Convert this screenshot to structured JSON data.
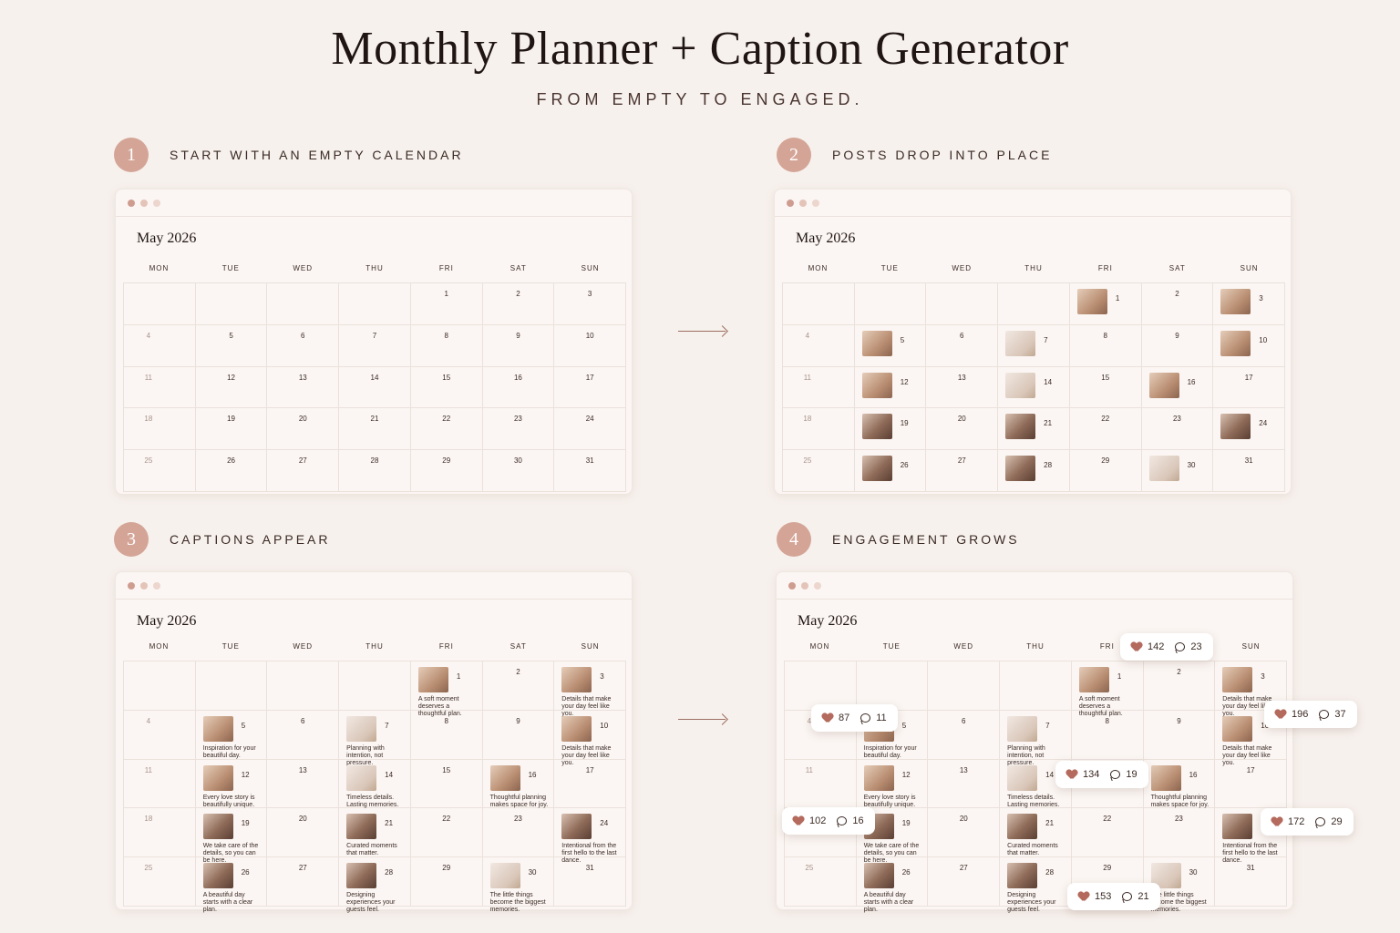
{
  "header": {
    "title": "Monthly Planner + Caption Generator",
    "subtitle": "FROM EMPTY TO ENGAGED."
  },
  "steps": [
    {
      "num": "1",
      "label": "START WITH AN EMPTY CALENDAR"
    },
    {
      "num": "2",
      "label": "POSTS DROP INTO PLACE"
    },
    {
      "num": "3",
      "label": "CAPTIONS APPEAR"
    },
    {
      "num": "4",
      "label": "ENGAGEMENT GROWS"
    }
  ],
  "calendar": {
    "month": "May 2026",
    "days_of_week": [
      "MON",
      "TUE",
      "WED",
      "THU",
      "FRI",
      "SAT",
      "SUN"
    ],
    "weeks": [
      [
        "",
        "",
        "",
        "",
        "1",
        "2",
        "3"
      ],
      [
        "4",
        "5",
        "6",
        "7",
        "8",
        "9",
        "10"
      ],
      [
        "11",
        "12",
        "13",
        "14",
        "15",
        "16",
        "17"
      ],
      [
        "18",
        "19",
        "20",
        "21",
        "22",
        "23",
        "24"
      ],
      [
        "25",
        "26",
        "27",
        "28",
        "29",
        "30",
        "31"
      ]
    ]
  },
  "captions": {
    "1": "A soft moment deserves a thoughtful plan.",
    "3": "Details that make your day feel like you.",
    "5": "Inspiration for your beautiful day.",
    "7": "Planning with intention, not pressure.",
    "10": "Details that make your day feel like you.",
    "12": "Every love story is beautifully unique.",
    "14": "Timeless details. Lasting memories.",
    "16": "Thoughtful planning makes space for joy.",
    "19": "We take care of the details, so you can be here.",
    "21": "Curated moments that matter.",
    "24": "Intentional from the first hello to the last dance.",
    "26": "A beautiful day starts with a clear plan.",
    "28": "Designing experiences your guests feel.",
    "30": "The little things become the biggest memories."
  },
  "engagement": [
    {
      "likes": "142",
      "comments": "23"
    },
    {
      "likes": "87",
      "comments": "11"
    },
    {
      "likes": "196",
      "comments": "37"
    },
    {
      "likes": "134",
      "comments": "19"
    },
    {
      "likes": "102",
      "comments": "16"
    },
    {
      "likes": "172",
      "comments": "29"
    },
    {
      "likes": "153",
      "comments": "21"
    }
  ],
  "colors": {
    "accent": "#d4a597",
    "heart": "#b46a5c",
    "background": "#f7f1ed"
  }
}
